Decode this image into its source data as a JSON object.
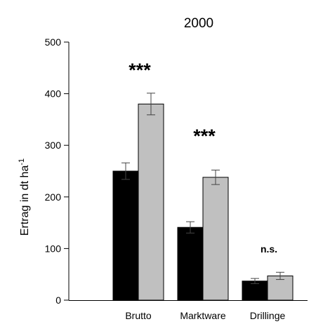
{
  "chart_data": {
    "type": "bar",
    "title": "2000",
    "ylabel": "Ertrag in dt ha",
    "ylabel_sup": "-1",
    "ylim": [
      0,
      500
    ],
    "yticks": [
      0,
      100,
      200,
      300,
      400,
      500
    ],
    "ytick_labels": [
      "0",
      "100",
      "200",
      "300",
      "400",
      "500"
    ],
    "categories": [
      "Brutto",
      "Marktware",
      "Drillinge"
    ],
    "series": [
      {
        "color": "#000000",
        "values": [
          250,
          141,
          37
        ],
        "errors": [
          16,
          11,
          5
        ]
      },
      {
        "color": "#c0c0c0",
        "values": [
          380,
          238,
          47
        ],
        "errors": [
          21,
          14,
          7
        ]
      }
    ],
    "annotations": [
      "***",
      "***",
      "n.s."
    ],
    "grid": false
  }
}
